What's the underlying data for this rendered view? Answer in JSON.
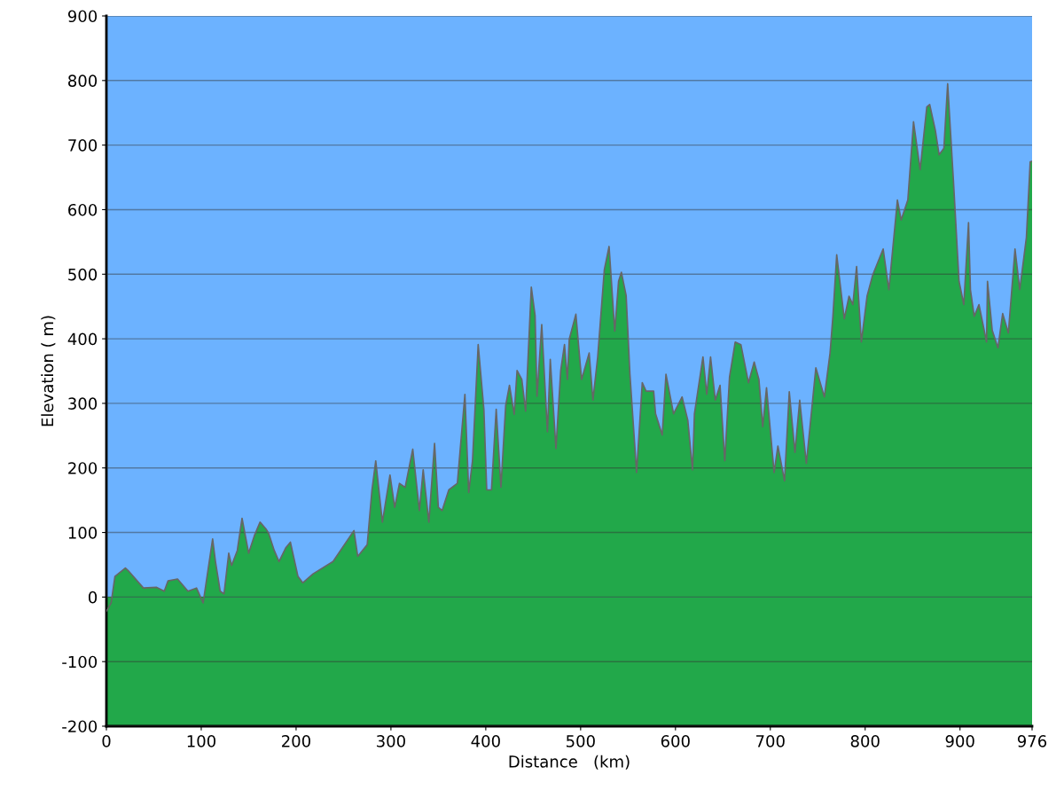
{
  "chart_data": {
    "type": "area",
    "xlabel": "Distance   (km)",
    "ylabel": "Elevation ( m)",
    "xlim": [
      0,
      976
    ],
    "ylim": [
      -200,
      900
    ],
    "xticks": [
      0,
      100,
      200,
      300,
      400,
      500,
      600,
      700,
      800,
      900,
      976
    ],
    "yticks": [
      -200,
      -100,
      0,
      100,
      200,
      300,
      400,
      500,
      600,
      700,
      800,
      900
    ],
    "grid": "y",
    "legend": false,
    "bands": [
      {
        "axis": "y",
        "from": -200,
        "to": 0,
        "color": "#22a84a"
      }
    ],
    "series": [
      {
        "color": "#22a84a",
        "x": [
          0,
          5,
          9,
          20,
          23,
          39,
          53,
          61,
          65,
          75,
          86,
          95,
          102,
          112,
          115,
          120,
          124,
          129,
          132,
          138,
          143,
          150,
          156,
          162,
          168,
          171,
          177,
          182,
          189,
          194,
          202,
          207,
          218,
          239,
          261,
          265,
          275,
          280,
          284,
          291,
          299,
          304,
          309,
          315,
          323,
          330,
          334,
          340,
          346,
          350,
          354,
          361,
          370,
          378,
          382,
          386,
          392,
          398,
          401,
          406,
          411,
          416,
          421,
          425,
          430,
          433,
          438,
          442,
          448,
          452,
          454,
          459,
          465,
          468,
          474,
          479,
          483,
          486,
          488,
          495,
          501,
          509,
          513,
          518,
          525,
          530,
          536,
          540,
          543,
          548,
          552,
          559,
          565,
          569,
          577,
          579,
          586,
          590,
          598,
          607,
          613,
          618,
          620,
          629,
          633,
          637,
          642,
          647,
          652,
          657,
          663,
          669,
          677,
          683,
          688,
          692,
          696,
          704,
          708,
          715,
          720,
          726,
          731,
          738,
          748,
          757,
          763,
          766,
          770,
          778,
          783,
          787,
          791,
          796,
          802,
          808,
          819,
          825,
          834,
          838,
          845,
          851,
          858,
          865,
          868,
          874,
          878,
          883,
          887,
          893,
          899,
          904,
          909,
          911,
          915,
          920,
          928,
          929,
          934,
          940,
          945,
          951,
          958,
          963,
          970,
          974,
          976
        ],
        "values": [
          -22,
          -9,
          32,
          45,
          41,
          14,
          15,
          9,
          25,
          28,
          9,
          14,
          -9,
          90,
          55,
          9,
          5,
          68,
          49,
          72,
          122,
          68,
          95,
          116,
          106,
          99,
          72,
          55,
          76,
          85,
          32,
          22,
          36,
          55,
          103,
          63,
          81,
          166,
          211,
          116,
          189,
          139,
          176,
          170,
          229,
          134,
          197,
          116,
          238,
          139,
          134,
          166,
          176,
          314,
          162,
          211,
          391,
          291,
          166,
          166,
          291,
          170,
          297,
          328,
          283,
          351,
          337,
          288,
          480,
          436,
          311,
          422,
          256,
          368,
          230,
          351,
          391,
          337,
          399,
          438,
          337,
          378,
          305,
          372,
          507,
          543,
          412,
          489,
          503,
          467,
          345,
          193,
          332,
          319,
          319,
          284,
          251,
          345,
          284,
          310,
          274,
          197,
          284,
          372,
          314,
          372,
          305,
          328,
          211,
          341,
          395,
          391,
          332,
          364,
          337,
          264,
          324,
          193,
          234,
          180,
          318,
          224,
          305,
          207,
          355,
          310,
          378,
          435,
          530,
          431,
          466,
          453,
          512,
          395,
          466,
          499,
          539,
          476,
          615,
          584,
          615,
          736,
          662,
          759,
          763,
          723,
          685,
          695,
          795,
          647,
          489,
          453,
          580,
          476,
          435,
          453,
          395,
          489,
          413,
          386,
          439,
          409,
          539,
          476,
          557,
          674,
          675
        ]
      }
    ]
  }
}
